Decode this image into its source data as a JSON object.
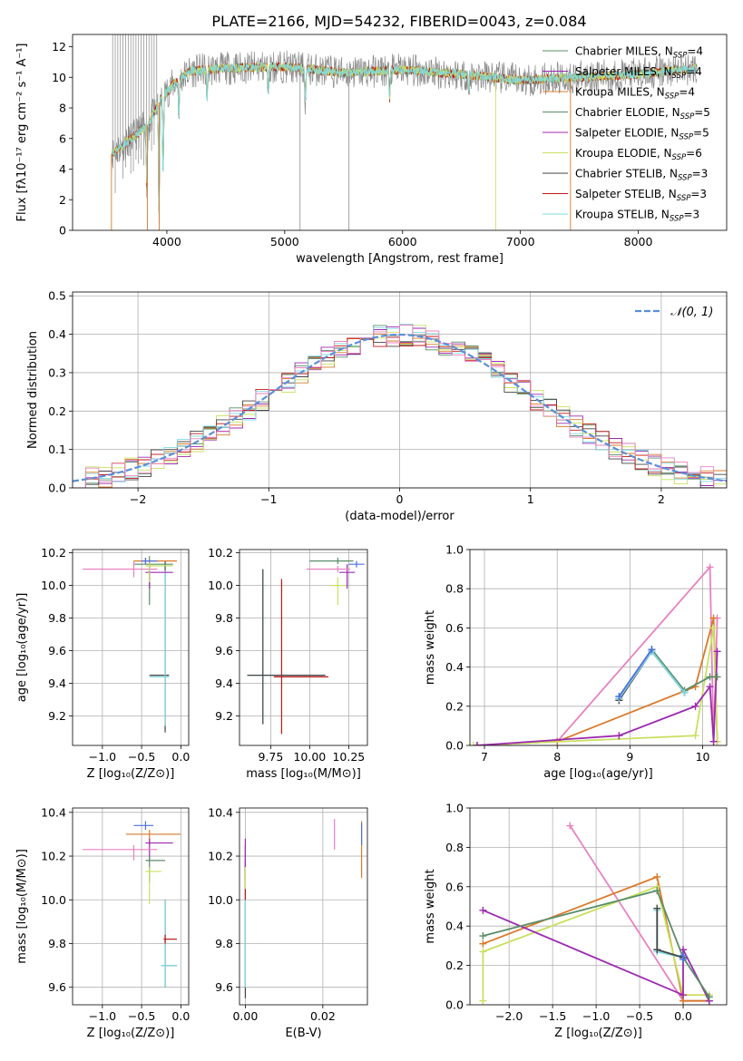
{
  "figure": {
    "title": "PLATE=2166, MJD=54232, FIBERID=0043, z=0.084"
  },
  "colors": {
    "chabrier_miles": "#5a8d68",
    "salpeter_miles": "#9c2ab0",
    "kroupa_miles": "#d97a2a",
    "chabrier_elodie": "#5a8d68",
    "salpeter_elodie": "#9c2ab0",
    "kroupa_elodie": "#c8e060",
    "chabrier_stelib": "#444444",
    "salpeter_stelib": "#c01818",
    "kroupa_stelib": "#80d8e0",
    "pink": "#e882c0",
    "blue": "#4f6fe0",
    "data": "#888888",
    "normal": "#5b8fd8"
  },
  "chart_data": [
    {
      "id": "spectrum",
      "type": "line",
      "title": "PLATE=2166, MJD=54232, FIBERID=0043, z=0.084",
      "xlabel": "wavelength [Angstrom, rest frame]",
      "ylabel": "Flux [fλ10⁻¹⁷ erg cm⁻² s⁻¹ A⁻¹]",
      "xlim": [
        3200,
        8750
      ],
      "ylim": [
        0,
        12.8
      ],
      "xticks": [
        4000,
        5000,
        6000,
        7000,
        8000
      ],
      "yticks": [
        0,
        2,
        4,
        6,
        8,
        10,
        12
      ],
      "legend_position": "top-right",
      "legend": [
        {
          "label": "Chabrier MILES, N",
          "sub": "SSP",
          "tail": "=4",
          "color": "#5a8d68"
        },
        {
          "label": "Salpeter MILES, N",
          "sub": "SSP",
          "tail": "=4",
          "color": "#9c2ab0"
        },
        {
          "label": "Kroupa MILES, N",
          "sub": "SSP",
          "tail": "=4",
          "color": "#d97a2a"
        },
        {
          "label": "Chabrier ELODIE, N",
          "sub": "SSP",
          "tail": "=5",
          "color": "#5a8d68"
        },
        {
          "label": "Salpeter ELODIE, N",
          "sub": "SSP",
          "tail": "=5",
          "color": "#9c2ab0"
        },
        {
          "label": "Kroupa ELODIE, N",
          "sub": "SSP",
          "tail": "=6",
          "color": "#c8e060"
        },
        {
          "label": "Chabrier STELIB, N",
          "sub": "SSP",
          "tail": "=3",
          "color": "#444444"
        },
        {
          "label": "Salpeter STELIB, N",
          "sub": "SSP",
          "tail": "=3",
          "color": "#c01818"
        },
        {
          "label": "Kroupa STELIB, N",
          "sub": "SSP",
          "tail": "=3",
          "color": "#80d8e0"
        }
      ],
      "continuum": [
        [
          3530,
          5.0
        ],
        [
          3700,
          6.0
        ],
        [
          3850,
          7.0
        ],
        [
          3950,
          8.6
        ],
        [
          4050,
          9.5
        ],
        [
          4200,
          10.4
        ],
        [
          4500,
          10.6
        ],
        [
          5000,
          10.7
        ],
        [
          5500,
          10.3
        ],
        [
          6000,
          10.5
        ],
        [
          6500,
          10.2
        ],
        [
          7000,
          9.8
        ],
        [
          7500,
          10.0
        ],
        [
          8000,
          10.2
        ],
        [
          8500,
          10.6
        ]
      ],
      "absorption_lines": [
        [
          3830,
          3.0
        ],
        [
          3933,
          1.0
        ],
        [
          3968,
          3.5
        ],
        [
          4102,
          7.5
        ],
        [
          4340,
          8.5
        ],
        [
          4861,
          9.0
        ],
        [
          5175,
          8.3
        ],
        [
          5890,
          8.6
        ],
        [
          6563,
          8.8
        ]
      ],
      "vertical_drops": [
        5130,
        5545,
        6790,
        7425
      ]
    },
    {
      "id": "residuals",
      "type": "histogram",
      "xlabel": "(data-model)/error",
      "ylabel": "Normed distribution",
      "xlim": [
        -2.5,
        2.5
      ],
      "ylim": [
        0,
        0.51
      ],
      "xticks": [
        -2,
        -1,
        0,
        1,
        2
      ],
      "yticks": [
        0.0,
        0.1,
        0.2,
        0.3,
        0.4,
        0.5
      ],
      "bin_width": 0.1,
      "legend_position": "top-right",
      "legend": [
        {
          "label": "𝒩(0, 1)",
          "color": "#5b8fd8",
          "dashed": true
        }
      ],
      "hist_colors": [
        "#5a8d68",
        "#9c2ab0",
        "#d97a2a",
        "#c8e060",
        "#444444",
        "#c01818",
        "#80d8e0",
        "#e882c0"
      ]
    },
    {
      "id": "age_vs_z",
      "type": "errorbar",
      "xlabel": "Z [log₁₀(Z/Z⊙)]",
      "ylabel": "age  [log₁₀(age/yr)]",
      "xlim": [
        -1.38,
        0.1
      ],
      "ylim": [
        9.02,
        10.22
      ],
      "xticks": [
        -1.0,
        -0.5,
        0.0
      ],
      "yticks": [
        9.2,
        9.4,
        9.6,
        9.8,
        10.0,
        10.2
      ],
      "points": [
        {
          "x": -0.2,
          "y": 9.45,
          "xerr": [
            0.2,
            0.05
          ],
          "yerr": [
            0.35,
            0.7
          ],
          "color": "#444444"
        },
        {
          "x": -0.2,
          "y": 9.44,
          "xerr": [
            0.2,
            0.05
          ],
          "yerr": [
            0.3,
            0.65
          ],
          "color": "#80d8e0"
        },
        {
          "x": -0.4,
          "y": 10.13,
          "xerr": [
            0.2,
            0.3
          ],
          "yerr": [
            0.25,
            0.05
          ],
          "color": "#5a8d68"
        },
        {
          "x": -0.4,
          "y": 10.08,
          "xerr": [
            0.05,
            0.3
          ],
          "yerr": [
            0.1,
            0.05
          ],
          "color": "#9c2ab0"
        },
        {
          "x": -0.6,
          "y": 10.1,
          "xerr": [
            0.65,
            0.3
          ],
          "yerr": [
            0.05,
            0.05
          ],
          "color": "#e882c0"
        },
        {
          "x": -0.4,
          "y": 10.12,
          "xerr": [
            0.05,
            0.3
          ],
          "yerr": [
            0.1,
            0.02
          ],
          "color": "#c8e060"
        },
        {
          "x": -0.45,
          "y": 10.15,
          "xerr": [
            0.15,
            0.4
          ],
          "yerr": [
            0.02,
            0.02
          ],
          "color": "#d97a2a"
        },
        {
          "x": -0.45,
          "y": 10.15,
          "xerr": [
            0.05,
            0.15
          ],
          "yerr": [
            0.02,
            0.02
          ],
          "color": "#4f6fe0"
        }
      ]
    },
    {
      "id": "age_vs_mass",
      "type": "errorbar",
      "xlabel": "mass [log₁₀(M/M⊙)]",
      "ylabel": "",
      "xlim": [
        9.55,
        10.37
      ],
      "ylim": [
        9.02,
        10.22
      ],
      "xticks": [
        9.75,
        10.0,
        10.25
      ],
      "yticks": [
        9.2,
        9.4,
        9.6,
        9.8,
        10.0,
        10.2
      ],
      "points": [
        {
          "x": 9.7,
          "y": 9.45,
          "xerr": [
            0.1,
            0.4
          ],
          "yerr": [
            0.3,
            0.65
          ],
          "color": "#80d8e0"
        },
        {
          "x": 9.7,
          "y": 9.45,
          "xerr": [
            0.1,
            0.4
          ],
          "yerr": [
            0.3,
            0.65
          ],
          "color": "#444444"
        },
        {
          "x": 9.82,
          "y": 9.44,
          "xerr": [
            0.05,
            0.3
          ],
          "yerr": [
            0.35,
            0.6
          ],
          "color": "#c01818"
        },
        {
          "x": 10.18,
          "y": 10.15,
          "xerr": [
            0.18,
            0.1
          ],
          "yerr": [
            0.02,
            0.02
          ],
          "color": "#5a8d68"
        },
        {
          "x": 10.24,
          "y": 10.08,
          "xerr": [
            0.05,
            0.05
          ],
          "yerr": [
            0.1,
            0.05
          ],
          "color": "#9c2ab0"
        },
        {
          "x": 10.18,
          "y": 10.1,
          "xerr": [
            0.2,
            0.08
          ],
          "yerr": [
            0.02,
            0.02
          ],
          "color": "#e882c0"
        },
        {
          "x": 10.18,
          "y": 10.0,
          "xerr": [
            0.05,
            0.05
          ],
          "yerr": [
            0.12,
            0.05
          ],
          "color": "#c8e060"
        },
        {
          "x": 10.3,
          "y": 10.13,
          "xerr": [
            0.05,
            0.05
          ],
          "yerr": [
            0.02,
            0.02
          ],
          "color": "#4f6fe0"
        }
      ]
    },
    {
      "id": "weights_vs_age",
      "type": "line",
      "xlabel": "age  [log₁₀(age/yr)]",
      "ylabel": "mass weight",
      "xlim": [
        6.8,
        10.33
      ],
      "ylim": [
        0,
        1.0
      ],
      "xticks": [
        7,
        8,
        9,
        10
      ],
      "yticks": [
        0.0,
        0.2,
        0.4,
        0.6,
        0.8,
        1.0
      ],
      "series": [
        {
          "color": "#e882c0",
          "x": [
            6.9,
            8.0,
            10.1,
            10.15,
            10.2
          ],
          "y": [
            0.0,
            0.02,
            0.91,
            0.02,
            0.65
          ]
        },
        {
          "color": "#d97a2a",
          "x": [
            6.9,
            8.0,
            9.9,
            10.15,
            10.2
          ],
          "y": [
            0.0,
            0.02,
            0.3,
            0.65,
            0.02
          ]
        },
        {
          "color": "#c8e060",
          "x": [
            6.85,
            9.9,
            10.15,
            10.2
          ],
          "y": [
            0.0,
            0.05,
            0.6,
            0.02
          ]
        },
        {
          "color": "#9c2ab0",
          "x": [
            6.9,
            8.85,
            9.9,
            10.1,
            10.15,
            10.2
          ],
          "y": [
            0.0,
            0.05,
            0.2,
            0.3,
            0.02,
            0.48
          ]
        },
        {
          "color": "#5a8d68",
          "x": [
            8.85,
            9.3,
            9.75,
            10.1,
            10.2
          ],
          "y": [
            0.24,
            0.49,
            0.28,
            0.35,
            0.35
          ]
        },
        {
          "color": "#444444",
          "x": [
            8.85,
            9.3,
            9.75
          ],
          "y": [
            0.23,
            0.48,
            0.27
          ]
        },
        {
          "color": "#80d8e0",
          "x": [
            8.85,
            9.3,
            9.75
          ],
          "y": [
            0.24,
            0.48,
            0.27
          ]
        },
        {
          "color": "#4f6fe0",
          "x": [
            8.85,
            9.3
          ],
          "y": [
            0.25,
            0.49
          ]
        }
      ]
    },
    {
      "id": "mass_vs_z",
      "type": "errorbar",
      "xlabel": "Z [log₁₀(Z/Z⊙)]",
      "ylabel": "mass [log₁₀(M/M⊙)]",
      "xlim": [
        -1.38,
        0.1
      ],
      "ylim": [
        9.52,
        10.42
      ],
      "xticks": [
        -1.0,
        -0.5,
        0.0
      ],
      "yticks": [
        9.6,
        9.8,
        10.0,
        10.2,
        10.4
      ],
      "points": [
        {
          "x": -0.2,
          "y": 9.7,
          "xerr": [
            0.05,
            0.15
          ],
          "yerr": [
            0.1,
            0.3
          ],
          "color": "#444444"
        },
        {
          "x": -0.2,
          "y": 9.7,
          "xerr": [
            0.05,
            0.15
          ],
          "yerr": [
            0.1,
            0.3
          ],
          "color": "#80d8e0"
        },
        {
          "x": -0.2,
          "y": 9.82,
          "xerr": [
            0.02,
            0.15
          ],
          "yerr": [
            0.02,
            0.02
          ],
          "color": "#c01818"
        },
        {
          "x": -0.4,
          "y": 10.3,
          "xerr": [
            0.3,
            0.4
          ],
          "yerr": [
            0.05,
            0.02
          ],
          "color": "#d97a2a"
        },
        {
          "x": -0.4,
          "y": 10.26,
          "xerr": [
            0.05,
            0.3
          ],
          "yerr": [
            0.08,
            0.02
          ],
          "color": "#9c2ab0"
        },
        {
          "x": -0.6,
          "y": 10.23,
          "xerr": [
            0.65,
            0.3
          ],
          "yerr": [
            0.05,
            0.02
          ],
          "color": "#e882c0"
        },
        {
          "x": -0.4,
          "y": 10.18,
          "xerr": [
            0.05,
            0.2
          ],
          "yerr": [
            0.1,
            0.02
          ],
          "color": "#5a8d68"
        },
        {
          "x": -0.4,
          "y": 10.13,
          "xerr": [
            0.05,
            0.15
          ],
          "yerr": [
            0.15,
            0.02
          ],
          "color": "#c8e060"
        },
        {
          "x": -0.45,
          "y": 10.34,
          "xerr": [
            0.15,
            0.1
          ],
          "yerr": [
            0.02,
            0.02
          ],
          "color": "#4f6fe0"
        }
      ]
    },
    {
      "id": "mass_vs_ebv",
      "type": "errorbar",
      "xlabel": "E(B-V)",
      "ylabel": "",
      "xlim": [
        -0.0015,
        0.0315
      ],
      "ylim": [
        9.52,
        10.42
      ],
      "xticks": [
        0.0,
        0.02
      ],
      "yticks": [
        9.6,
        9.8,
        10.0,
        10.2,
        10.4
      ],
      "points": [
        {
          "x": 0.0,
          "y": 10.05,
          "xerr": [
            0,
            0
          ],
          "yerr": [
            0.5,
            0.2
          ],
          "color": "#444444"
        },
        {
          "x": 0.0,
          "y": 10.1,
          "xerr": [
            0,
            0
          ],
          "yerr": [
            0.1,
            0.08
          ],
          "color": "#c01818"
        },
        {
          "x": 0.0,
          "y": 10.2,
          "xerr": [
            0,
            0
          ],
          "yerr": [
            0.08,
            0.08
          ],
          "color": "#9c2ab0"
        },
        {
          "x": 0.0,
          "y": 9.8,
          "xerr": [
            0,
            0
          ],
          "yerr": [
            0.2,
            0.2
          ],
          "color": "#80d8e0"
        },
        {
          "x": 0.0,
          "y": 10.1,
          "xerr": [
            0,
            0
          ],
          "yerr": [
            0.05,
            0.05
          ],
          "color": "#c8e060"
        },
        {
          "x": 0.023,
          "y": 10.26,
          "xerr": [
            0,
            0
          ],
          "yerr": [
            0.03,
            0.11
          ],
          "color": "#e882c0"
        },
        {
          "x": 0.03,
          "y": 10.25,
          "xerr": [
            0,
            0
          ],
          "yerr": [
            0.15,
            0.11
          ],
          "color": "#d97a2a"
        },
        {
          "x": 0.03,
          "y": 10.3,
          "xerr": [
            0,
            0
          ],
          "yerr": [
            0.05,
            0.05
          ],
          "color": "#4f6fe0"
        }
      ]
    },
    {
      "id": "weights_vs_z",
      "type": "line",
      "xlabel": "Z [log₁₀(Z/Z⊙)]",
      "ylabel": "mass weight",
      "xlim": [
        -2.45,
        0.5
      ],
      "ylim": [
        0,
        1.0
      ],
      "xticks": [
        -2.0,
        -1.5,
        -1.0,
        -0.5,
        0.0
      ],
      "yticks": [
        0.0,
        0.2,
        0.4,
        0.6,
        0.8,
        1.0
      ],
      "series": [
        {
          "color": "#e882c0",
          "x": [
            -1.3,
            0.0,
            0.3
          ],
          "y": [
            0.91,
            0.02,
            0.02
          ]
        },
        {
          "color": "#d97a2a",
          "x": [
            -2.3,
            -0.3,
            0.0,
            0.3
          ],
          "y": [
            0.31,
            0.65,
            0.02,
            0.02
          ]
        },
        {
          "color": "#c8e060",
          "x": [
            -2.3,
            -2.3,
            -0.3,
            0.0,
            0.3
          ],
          "y": [
            0.02,
            0.27,
            0.6,
            0.05,
            0.05
          ]
        },
        {
          "color": "#9c2ab0",
          "x": [
            -2.3,
            0.0,
            0.0,
            0.3
          ],
          "y": [
            0.48,
            0.05,
            0.28,
            0.02
          ]
        },
        {
          "color": "#5a8d68",
          "x": [
            -2.3,
            -0.3,
            0.0,
            0.3
          ],
          "y": [
            0.35,
            0.58,
            0.24,
            0.04
          ]
        },
        {
          "color": "#80d8e0",
          "x": [
            -0.3,
            -0.3,
            0.0
          ],
          "y": [
            0.48,
            0.27,
            0.24
          ]
        },
        {
          "color": "#444444",
          "x": [
            -0.3,
            -0.3,
            0.0
          ],
          "y": [
            0.49,
            0.28,
            0.24
          ]
        },
        {
          "color": "#4f6fe0",
          "x": [
            0.0,
            0.0
          ],
          "y": [
            0.25,
            0.23
          ]
        }
      ]
    }
  ]
}
